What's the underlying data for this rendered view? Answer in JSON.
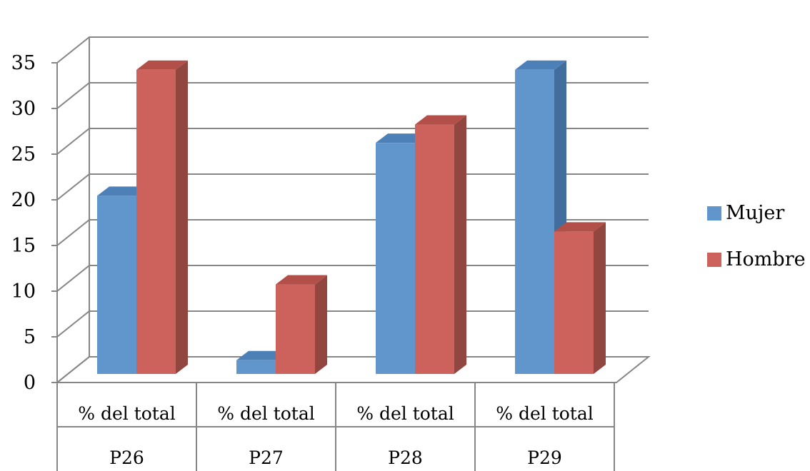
{
  "chart_data": {
    "type": "bar",
    "categories": [
      "P26",
      "P27",
      "P28",
      "P29"
    ],
    "subcategories": [
      "% del total",
      "% del total",
      "% del total",
      "% del total"
    ],
    "series": [
      {
        "name": "Mujer",
        "values": [
          19.5,
          1.5,
          25.3,
          33.3
        ]
      },
      {
        "name": "Hombre",
        "values": [
          33.3,
          9.8,
          27.3,
          15.6
        ]
      }
    ],
    "ylim": [
      0,
      35
    ],
    "yticks": [
      0,
      5,
      10,
      15,
      20,
      25,
      30,
      35
    ],
    "grid": true,
    "legend": "right",
    "colors": {
      "Mujer": {
        "front": "#6096cc",
        "side": "#416e9c",
        "top": "#4c80b6"
      },
      "Hombre": {
        "front": "#cd625d",
        "side": "#924640",
        "top": "#b24f49"
      },
      "grid": "#868686"
    }
  }
}
